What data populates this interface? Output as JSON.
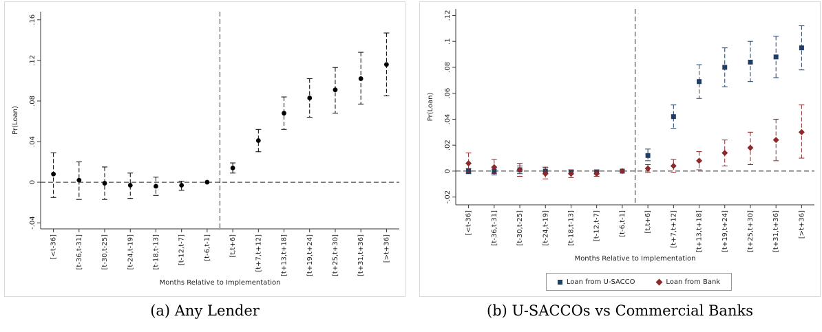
{
  "captions": {
    "a": "(a) Any Lender",
    "b": "(b) U-SACCOs vs Commercial Banks"
  },
  "colors": {
    "black": "#000000",
    "usacco": "#1f3e66",
    "bank": "#8b2a2a",
    "axis": "#333333"
  },
  "chart_data": [
    {
      "type": "scatter",
      "title": "",
      "xlabel": "Months Relative to Implementation",
      "ylabel": "Pr(Loan)",
      "categories": [
        "[<t-36]",
        "[t-36,t-31]",
        "[t-30,t-25]",
        "[t-24,t-19]",
        "[t-18,t-13]",
        "[t-12,t-7]",
        "[t-6,t-1]",
        "[t,t+6]",
        "[t+7,t+12]",
        "[t+13,t+18]",
        "[t+19,t+24]",
        "[t+25,t+30]",
        "[t+31,t+36]",
        "[>t+36]"
      ],
      "yticks": [
        "-.04",
        "0",
        ".04",
        ".08",
        ".12",
        ".16"
      ],
      "ytick_values": [
        -0.04,
        0,
        0.04,
        0.08,
        0.12,
        0.16
      ],
      "ylim": [
        -0.046,
        0.168
      ],
      "reference_line_y": 0,
      "event_line_after_category": "[t-6,t-1]",
      "grid": false,
      "series": [
        {
          "marker": "circle",
          "color": "#000000",
          "values": [
            0.008,
            0.002,
            -0.001,
            -0.003,
            -0.004,
            -0.003,
            0.0,
            0.014,
            0.041,
            0.068,
            0.083,
            0.091,
            0.102,
            0.116
          ],
          "ci_low": [
            -0.015,
            -0.017,
            -0.017,
            -0.016,
            -0.013,
            -0.008,
            0.0,
            0.009,
            0.03,
            0.052,
            0.064,
            0.068,
            0.077,
            0.085
          ],
          "ci_high": [
            0.029,
            0.02,
            0.015,
            0.009,
            0.005,
            0.001,
            0.0,
            0.019,
            0.052,
            0.084,
            0.102,
            0.113,
            0.128,
            0.147
          ]
        }
      ]
    },
    {
      "type": "scatter",
      "title": "",
      "xlabel": "Months Relative to Implementation",
      "ylabel": "Pr(Loan)",
      "categories": [
        "[<t-36]",
        "[t-36,t-31]",
        "[t-30,t-25]",
        "[t-24,t-19]",
        "[t-18,t-13]",
        "[t-12,t-7]",
        "[t-6,t-1]",
        "[t,t+6]",
        "[t+7,t+12]",
        "[t+13,t+18]",
        "[t+19,t+24]",
        "[t+25,t+30]",
        "[t+31,t+36]",
        "[>t+36]"
      ],
      "yticks": [
        "-.02",
        "0",
        ".02",
        ".04",
        ".06",
        ".08",
        ".1",
        ".12"
      ],
      "ytick_values": [
        -0.02,
        0,
        0.02,
        0.04,
        0.06,
        0.08,
        0.1,
        0.12
      ],
      "ylim": [
        -0.026,
        0.125
      ],
      "reference_line_y": 0,
      "event_line_after_category": "[t-6,t-1]",
      "grid": false,
      "legend_position": "bottom",
      "series": [
        {
          "name": "Loan from U-SACCO",
          "marker": "square",
          "color": "#1f3e66",
          "values": [
            0.0,
            0.0,
            0.001,
            0.0,
            -0.001,
            -0.001,
            0.0,
            0.012,
            0.042,
            0.069,
            0.08,
            0.084,
            0.088,
            0.095
          ],
          "ci_low": [
            -0.002,
            -0.003,
            -0.002,
            -0.002,
            -0.002,
            -0.002,
            0.0,
            0.008,
            0.033,
            0.056,
            0.065,
            0.069,
            0.072,
            0.078
          ],
          "ci_high": [
            0.002,
            0.003,
            0.004,
            0.003,
            0.001,
            0.001,
            0.0,
            0.017,
            0.051,
            0.082,
            0.095,
            0.1,
            0.104,
            0.112
          ]
        },
        {
          "name": "Loan from Bank",
          "marker": "diamond",
          "color": "#8b2a2a",
          "values": [
            0.006,
            0.003,
            0.001,
            -0.002,
            -0.002,
            -0.002,
            0.0,
            0.002,
            0.004,
            0.008,
            0.014,
            0.018,
            0.024,
            0.03
          ],
          "ci_low": [
            -0.001,
            -0.002,
            -0.004,
            -0.006,
            -0.005,
            -0.004,
            0.0,
            -0.001,
            -0.001,
            0.001,
            0.004,
            0.005,
            0.008,
            0.01
          ],
          "ci_high": [
            0.014,
            0.009,
            0.006,
            0.003,
            0.001,
            0.0,
            0.0,
            0.005,
            0.009,
            0.015,
            0.024,
            0.03,
            0.04,
            0.051
          ]
        }
      ]
    }
  ]
}
